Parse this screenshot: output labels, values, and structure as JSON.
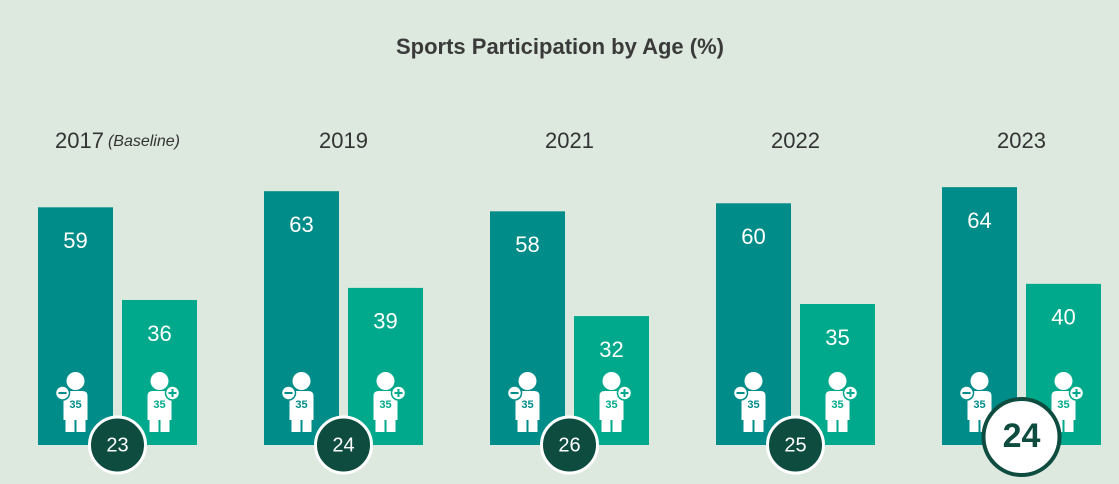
{
  "chart_data": {
    "type": "bar",
    "title": "Sports Participation by Age (%)",
    "categories": [
      "2017",
      "2019",
      "2021",
      "2022",
      "2023"
    ],
    "category_notes": [
      "(Baseline)",
      null,
      null,
      null,
      null
    ],
    "series": [
      {
        "color": "#008c89",
        "values": [
          59,
          63,
          58,
          60,
          64
        ]
      },
      {
        "color": "#00a98b",
        "values": [
          36,
          39,
          32,
          35,
          40
        ]
      }
    ],
    "icon_label": "35",
    "gap_values": [
      23,
      24,
      26,
      25,
      24
    ],
    "gap_color": "#0e4c40",
    "highlight_index": 4,
    "ylim": [
      0,
      70
    ]
  }
}
